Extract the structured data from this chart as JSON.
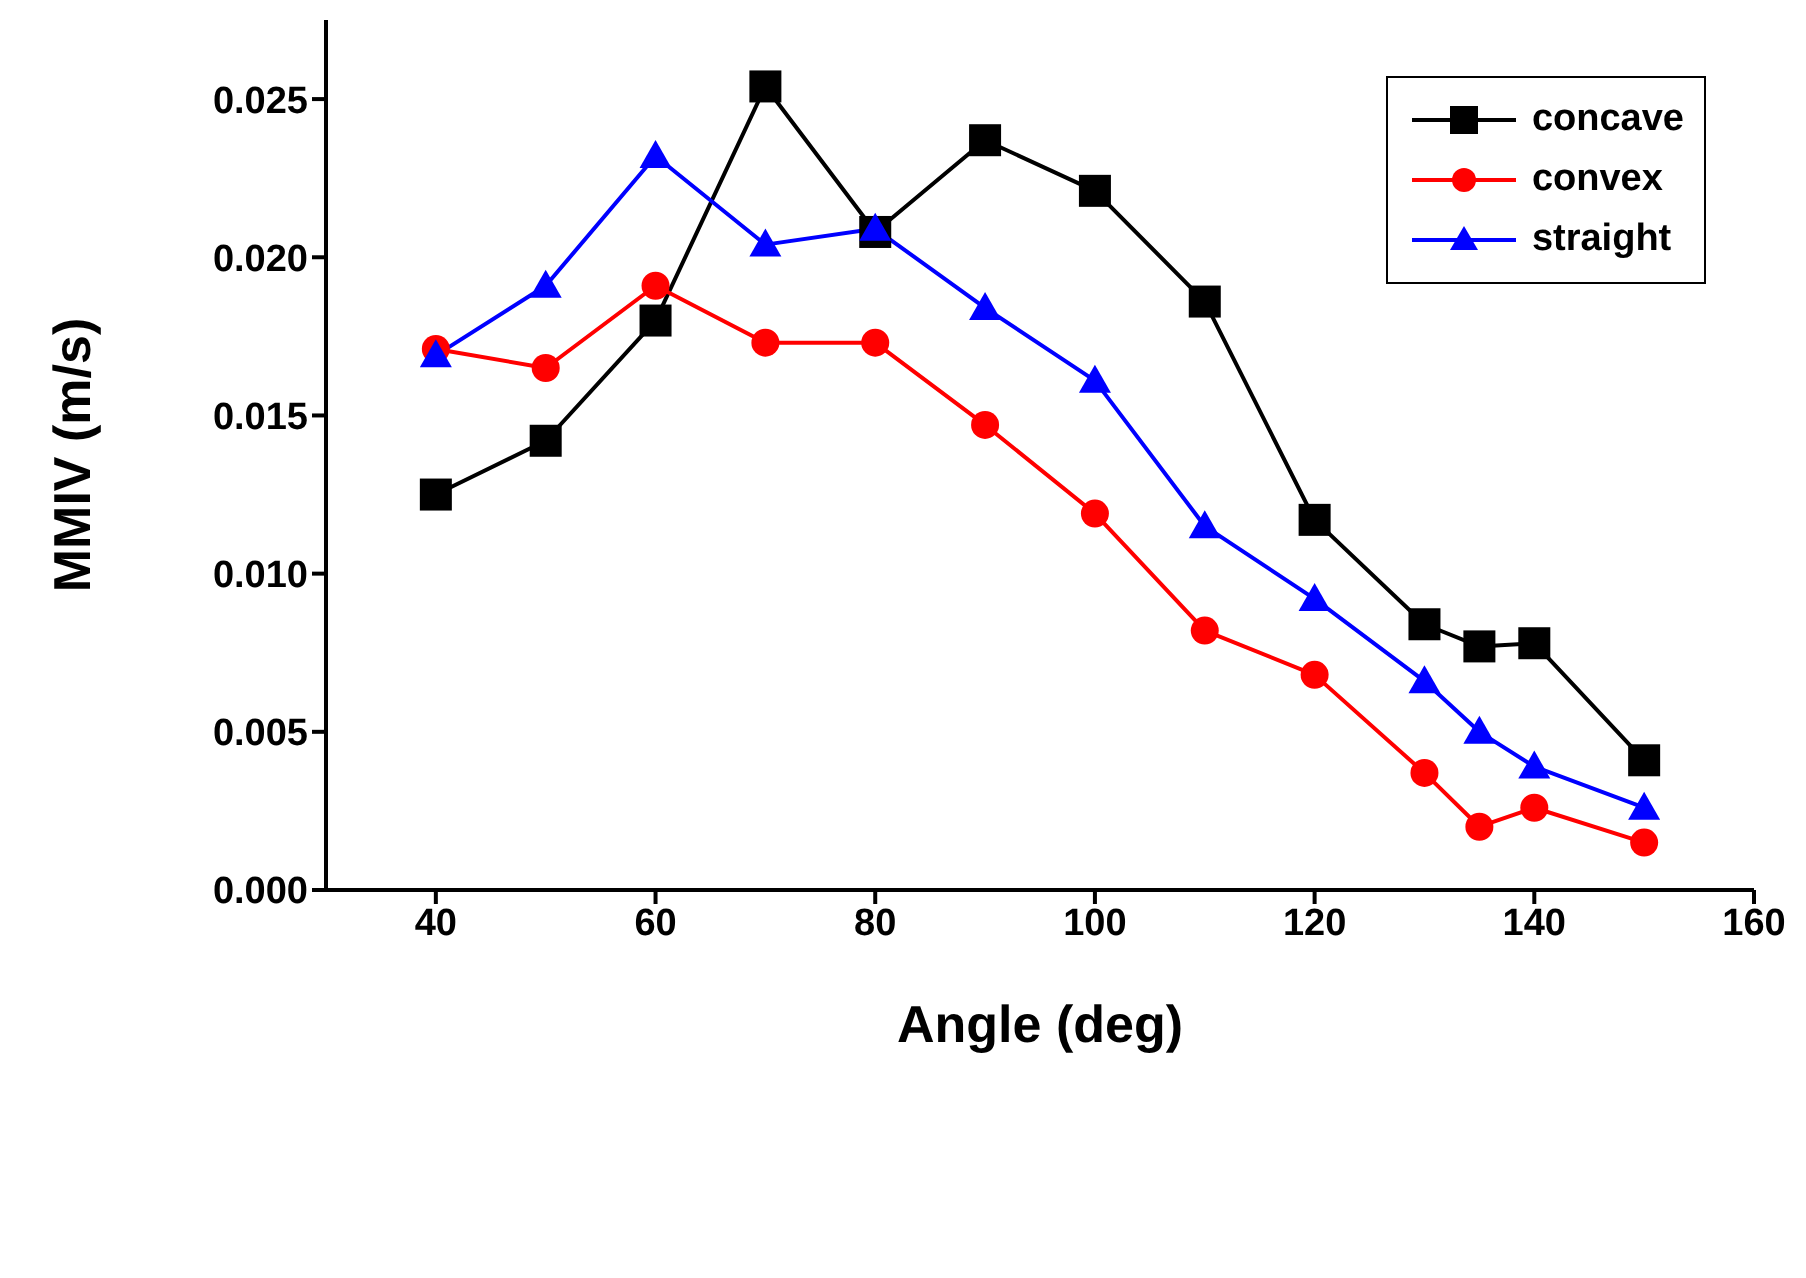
{
  "chart_data": {
    "type": "line",
    "xlabel": "Angle (deg)",
    "ylabel": "MMIV (m/s)",
    "x": [
      40,
      50,
      60,
      70,
      80,
      90,
      100,
      110,
      120,
      130,
      135,
      140,
      150
    ],
    "series": [
      {
        "name": "concave",
        "color": "#000000",
        "marker": "square",
        "values": [
          0.0125,
          0.0142,
          0.018,
          0.0254,
          0.0208,
          0.0237,
          0.0221,
          0.0186,
          0.0117,
          0.0084,
          0.0077,
          0.0078,
          0.0041
        ]
      },
      {
        "name": "convex",
        "color": "#ff0000",
        "marker": "circle",
        "values": [
          0.0171,
          0.0165,
          0.0191,
          0.0173,
          0.0173,
          0.0147,
          0.0119,
          0.0082,
          0.0068,
          0.0037,
          0.002,
          0.0026,
          0.0015
        ]
      },
      {
        "name": "straight",
        "color": "#0000ff",
        "marker": "triangle",
        "values": [
          0.0169,
          0.0191,
          0.0232,
          0.0204,
          0.0209,
          0.0184,
          0.0161,
          0.0115,
          0.0092,
          0.0066,
          0.005,
          0.0039,
          0.0026
        ]
      }
    ],
    "xlim": [
      30,
      160
    ],
    "xticks": [
      40,
      60,
      80,
      100,
      120,
      140,
      160
    ],
    "ylim": [
      0,
      0.0275
    ],
    "yticks": [
      {
        "value": 0,
        "label": "0.000"
      },
      {
        "value": 0.005,
        "label": "0.005"
      },
      {
        "value": 0.01,
        "label": "0.010"
      },
      {
        "value": 0.015,
        "label": "0.015"
      },
      {
        "value": 0.02,
        "label": "0.020"
      },
      {
        "value": 0.025,
        "label": "0.025"
      }
    ],
    "legend": "top right",
    "grid": false,
    "line_style": "solid"
  }
}
